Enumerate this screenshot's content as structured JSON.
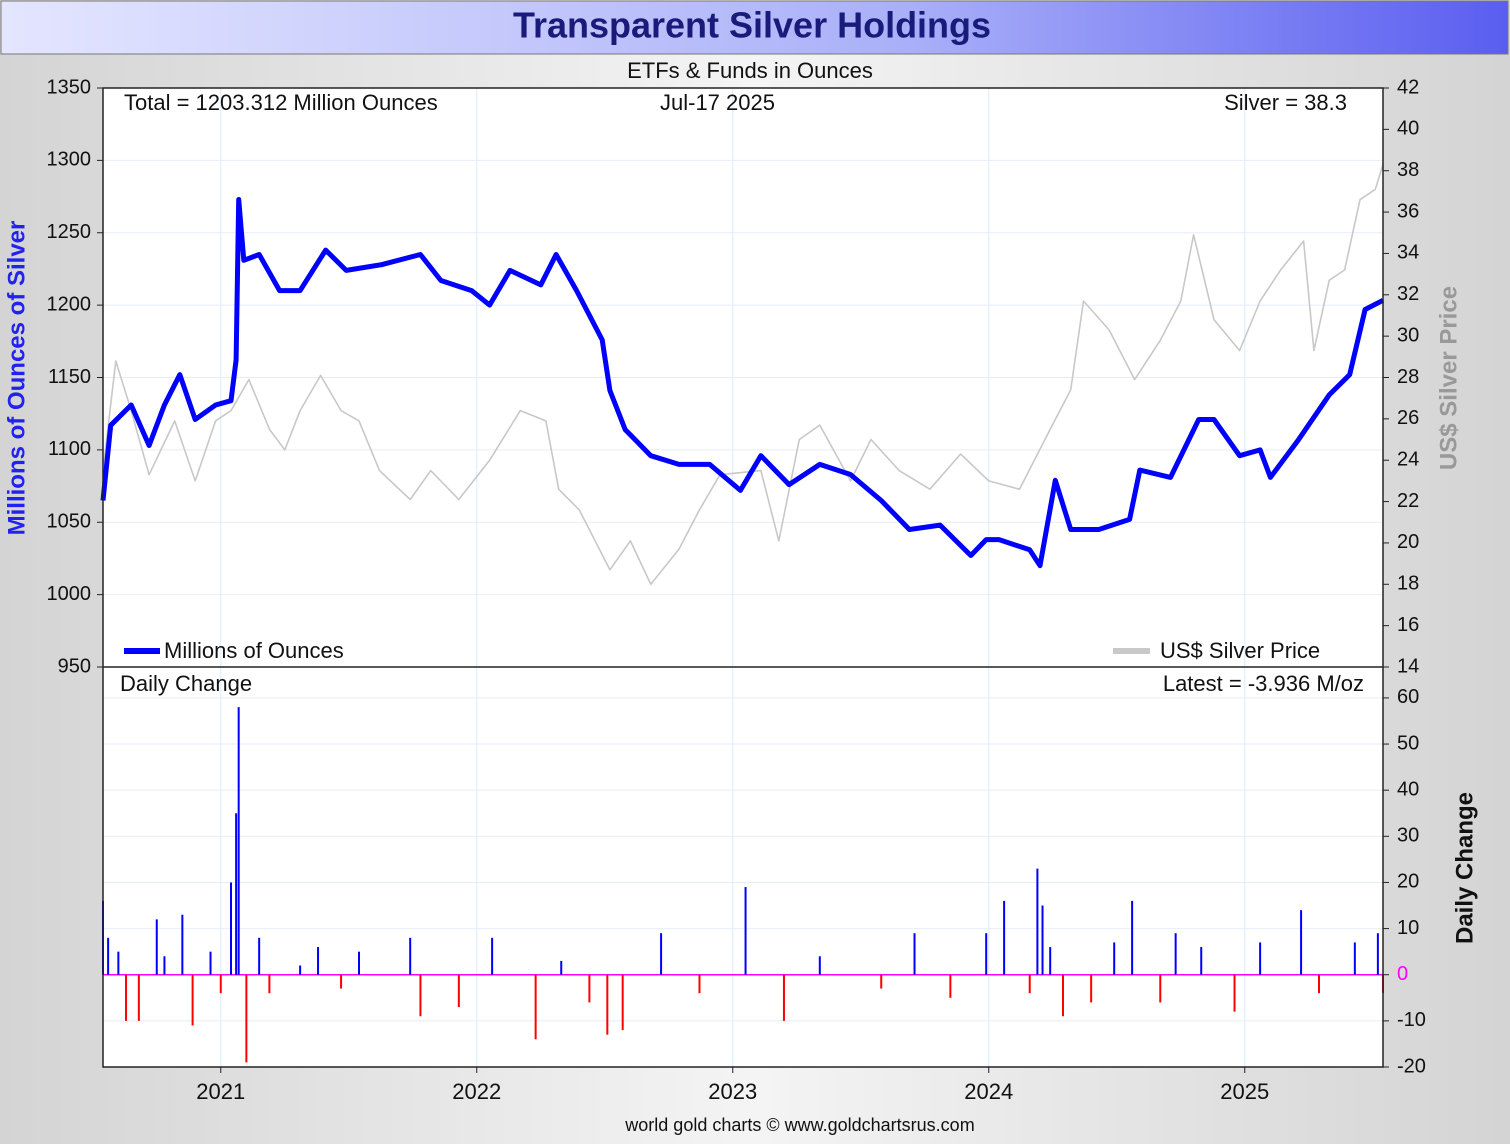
{
  "chart_data": [
    {
      "type": "line",
      "title": "Transparent Silver Holdings",
      "subtitle": "ETFs & Funds in Ounces",
      "annotations": [
        "Total = 1203.312 Million Ounces",
        "Jul-17  2025",
        "Silver = 38.3"
      ],
      "ylabel": "Millions of Ounces of Silver",
      "y2label": "US$ Silver Price",
      "xlim": [
        2020.54,
        2025.54
      ],
      "ylim": [
        950,
        1350
      ],
      "yticks": [
        950,
        1000,
        1050,
        1100,
        1150,
        1200,
        1250,
        1300,
        1350
      ],
      "y2lim": [
        14,
        42
      ],
      "y2ticks": [
        14,
        16,
        18,
        20,
        22,
        24,
        26,
        28,
        30,
        32,
        34,
        36,
        38,
        40,
        42
      ],
      "grid": true,
      "series": [
        {
          "name": "Millions of Ounces",
          "color": "#0000ff",
          "x": [
            2020.54,
            2020.57,
            2020.65,
            2020.72,
            2020.78,
            2020.84,
            2020.9,
            2020.98,
            2021.04,
            2021.06,
            2021.07,
            2021.09,
            2021.15,
            2021.23,
            2021.31,
            2021.41,
            2021.49,
            2021.63,
            2021.78,
            2021.86,
            2021.98,
            2022.05,
            2022.13,
            2022.25,
            2022.31,
            2022.39,
            2022.49,
            2022.52,
            2022.58,
            2022.68,
            2022.79,
            2022.91,
            2023.03,
            2023.11,
            2023.22,
            2023.34,
            2023.46,
            2023.58,
            2023.69,
            2023.81,
            2023.93,
            2023.99,
            2024.04,
            2024.16,
            2024.2,
            2024.26,
            2024.32,
            2024.43,
            2024.55,
            2024.59,
            2024.71,
            2024.82,
            2024.88,
            2024.98,
            2025.06,
            2025.1,
            2025.21,
            2025.33,
            2025.41,
            2025.47,
            2025.54
          ],
          "values": [
            1065,
            1117,
            1131,
            1103,
            1131,
            1152,
            1121,
            1131,
            1134,
            1162,
            1273,
            1231,
            1235,
            1210,
            1210,
            1238,
            1224,
            1228,
            1235,
            1217,
            1210,
            1200,
            1224,
            1214,
            1235,
            1210,
            1176,
            1141,
            1114,
            1096,
            1090,
            1090,
            1072,
            1096,
            1076,
            1090,
            1083,
            1065,
            1045,
            1048,
            1027,
            1038,
            1038,
            1031,
            1020,
            1079,
            1045,
            1045,
            1052,
            1086,
            1081,
            1121,
            1121,
            1096,
            1100,
            1081,
            1107,
            1138,
            1152,
            1197,
            1203.312
          ]
        },
        {
          "name": "US$ Silver Price",
          "color": "#c8c8c8",
          "axis": "y2",
          "x": [
            2020.54,
            2020.59,
            2020.65,
            2020.72,
            2020.82,
            2020.9,
            2020.98,
            2021.04,
            2021.11,
            2021.19,
            2021.25,
            2021.31,
            2021.39,
            2021.47,
            2021.54,
            2021.62,
            2021.74,
            2021.82,
            2021.93,
            2022.05,
            2022.17,
            2022.27,
            2022.32,
            2022.4,
            2022.52,
            2022.6,
            2022.68,
            2022.79,
            2022.87,
            2022.95,
            2023.11,
            2023.18,
            2023.26,
            2023.34,
            2023.46,
            2023.54,
            2023.65,
            2023.77,
            2023.89,
            2024.0,
            2024.12,
            2024.24,
            2024.32,
            2024.37,
            2024.47,
            2024.57,
            2024.67,
            2024.75,
            2024.8,
            2024.88,
            2024.98,
            2025.06,
            2025.14,
            2025.23,
            2025.27,
            2025.33,
            2025.39,
            2025.45,
            2025.51,
            2025.54
          ],
          "values": [
            23.5,
            28.8,
            26.4,
            23.3,
            25.9,
            23.0,
            25.9,
            26.4,
            27.9,
            25.5,
            24.5,
            26.4,
            28.1,
            26.4,
            25.9,
            23.5,
            22.1,
            23.5,
            22.1,
            24.0,
            26.4,
            25.9,
            22.6,
            21.6,
            18.7,
            20.1,
            18.0,
            19.7,
            21.6,
            23.3,
            23.5,
            20.1,
            25.0,
            25.7,
            23.0,
            25.0,
            23.5,
            22.6,
            24.3,
            23.0,
            22.6,
            25.5,
            27.4,
            31.7,
            30.3,
            27.9,
            29.8,
            31.7,
            34.9,
            30.8,
            29.3,
            31.7,
            33.2,
            34.6,
            29.3,
            32.7,
            33.2,
            36.6,
            37.1,
            38.3
          ]
        }
      ]
    },
    {
      "type": "bar",
      "title": "Daily Change",
      "annotations": [
        "Latest = -3.936 M/oz"
      ],
      "y2label": "Daily Change",
      "source": "world gold charts © www.goldchartsrus.com",
      "color": "#0000ff",
      "negative_color": "#ff0000",
      "zero_color": "#ff00ff",
      "xlim": [
        2020.54,
        2025.54
      ],
      "xticks": [
        2021,
        2022,
        2023,
        2024,
        2025
      ],
      "ylim": [
        -20,
        66.7
      ],
      "yticks": [
        -20,
        -10,
        0,
        10,
        20,
        30,
        40,
        50,
        60
      ],
      "grid": true,
      "x": [
        2020.54,
        2020.56,
        2020.6,
        2020.63,
        2020.68,
        2020.75,
        2020.78,
        2020.85,
        2020.89,
        2020.96,
        2021.0,
        2021.04,
        2021.06,
        2021.07,
        2021.1,
        2021.15,
        2021.19,
        2021.31,
        2021.38,
        2021.47,
        2021.54,
        2021.74,
        2021.78,
        2021.93,
        2022.06,
        2022.23,
        2022.33,
        2022.44,
        2022.51,
        2022.57,
        2022.72,
        2022.87,
        2023.05,
        2023.2,
        2023.34,
        2023.58,
        2023.71,
        2023.85,
        2023.99,
        2024.06,
        2024.16,
        2024.19,
        2024.21,
        2024.24,
        2024.29,
        2024.4,
        2024.49,
        2024.56,
        2024.67,
        2024.73,
        2024.83,
        2024.96,
        2025.06,
        2025.22,
        2025.29,
        2025.43,
        2025.52,
        2025.54
      ],
      "values": [
        16,
        8,
        5,
        -10,
        -10,
        12,
        4,
        13,
        -11,
        5,
        -4,
        20,
        35,
        58,
        -19,
        8,
        -4,
        2,
        6,
        -3,
        5,
        8,
        -9,
        -7,
        8,
        -14,
        3,
        -6,
        -13,
        -12,
        9,
        -4,
        19,
        -10,
        4,
        -3,
        9,
        -5,
        9,
        16,
        -4,
        23,
        15,
        6,
        -9,
        -6,
        7,
        16,
        -6,
        9,
        6,
        -8,
        7,
        14,
        -4,
        7,
        9,
        -3.936
      ]
    }
  ]
}
